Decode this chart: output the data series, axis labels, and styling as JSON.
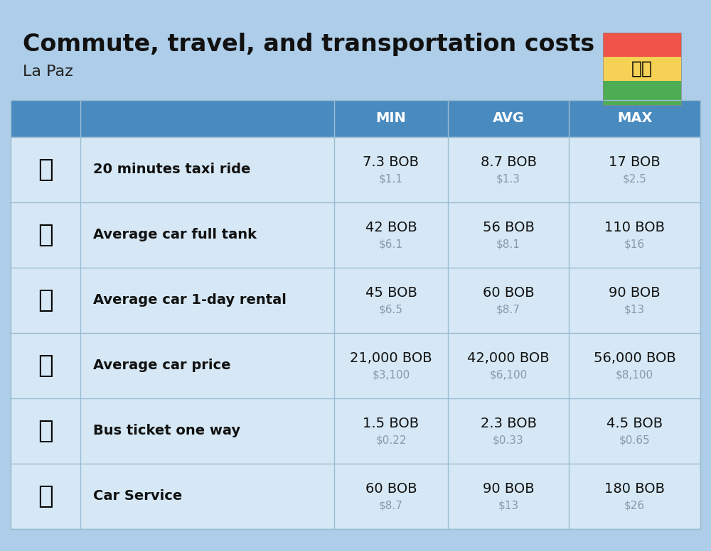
{
  "title": "Commute, travel, and transportation costs",
  "subtitle": "La Paz",
  "background_color": "#aecde8",
  "header_bg_color": "#4a8bbf",
  "header_text_color": "#ffffff",
  "row_bg_color": "#d6e8f5",
  "divider_color": "#9bbdd4",
  "rows": [
    {
      "label": "20 minutes taxi ride",
      "icon": "🚕",
      "min_bob": "7.3 BOB",
      "min_usd": "$1.1",
      "avg_bob": "8.7 BOB",
      "avg_usd": "$1.3",
      "max_bob": "17 BOB",
      "max_usd": "$2.5"
    },
    {
      "label": "Average car full tank",
      "icon": "⛽",
      "min_bob": "42 BOB",
      "min_usd": "$6.1",
      "avg_bob": "56 BOB",
      "avg_usd": "$8.1",
      "max_bob": "110 BOB",
      "max_usd": "$16"
    },
    {
      "label": "Average car 1-day rental",
      "icon": "🚙",
      "min_bob": "45 BOB",
      "min_usd": "$6.5",
      "avg_bob": "60 BOB",
      "avg_usd": "$8.7",
      "max_bob": "90 BOB",
      "max_usd": "$13"
    },
    {
      "label": "Average car price",
      "icon": "🚗",
      "min_bob": "21,000 BOB",
      "min_usd": "$3,100",
      "avg_bob": "42,000 BOB",
      "avg_usd": "$6,100",
      "max_bob": "56,000 BOB",
      "max_usd": "$8,100"
    },
    {
      "label": "Bus ticket one way",
      "icon": "🚌",
      "min_bob": "1.5 BOB",
      "min_usd": "$0.22",
      "avg_bob": "2.3 BOB",
      "avg_usd": "$0.33",
      "max_bob": "4.5 BOB",
      "max_usd": "$0.65"
    },
    {
      "label": "Car Service",
      "icon": "🚗",
      "min_bob": "60 BOB",
      "min_usd": "$8.7",
      "avg_bob": "90 BOB",
      "avg_usd": "$13",
      "max_bob": "180 BOB",
      "max_usd": "$26"
    }
  ],
  "flag_colors": [
    "#f0534a",
    "#f5d155",
    "#4cad52"
  ],
  "col_header_labels": [
    "MIN",
    "AVG",
    "MAX"
  ],
  "title_fontsize": 24,
  "subtitle_fontsize": 16,
  "header_fontsize": 14,
  "label_fontsize": 14,
  "value_fontsize": 14,
  "usd_fontsize": 11,
  "usd_color": "#8899aa",
  "icon_fontsize": 26
}
